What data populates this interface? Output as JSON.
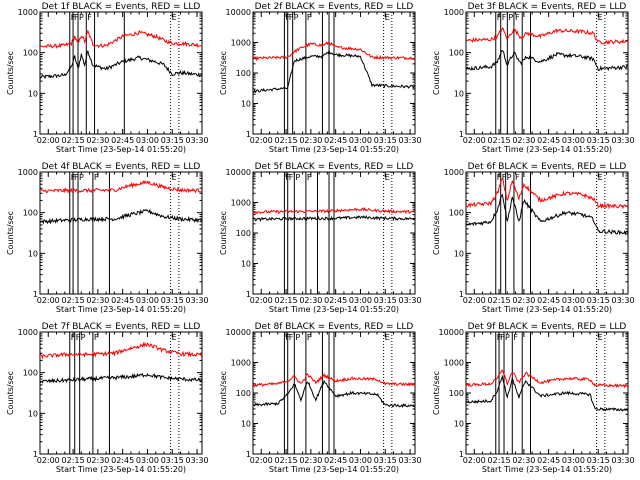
{
  "figure": {
    "start_time_label": "Start Time (23-Sep-14 01:55:20)",
    "y_axis_label": "Counts/sec",
    "x_tick_labels": [
      "02:00",
      "02:15",
      "02:30",
      "02:45",
      "03:00",
      "03:15",
      "03:30"
    ],
    "colors": {
      "events": "#000000",
      "lld": "#ff0000"
    }
  },
  "chart_data": [
    {
      "type": "line",
      "title": "Det 1f BLACK = Events, RED = LLD",
      "xlabel": "Start Time (23-Sep-14 01:55:20)",
      "ylabel": "Counts/sec",
      "xlim": [
        "01:55",
        "03:33"
      ],
      "ylim": [
        1,
        1000
      ],
      "yscale": "log",
      "y_tick_labels": [
        "1",
        "10",
        "100",
        "1000"
      ],
      "x": [
        "01:55",
        "02:10",
        "02:14",
        "02:16",
        "02:18",
        "02:20",
        "02:22",
        "02:24",
        "02:27",
        "02:30",
        "02:35",
        "02:45",
        "02:55",
        "03:05",
        "03:10",
        "03:15",
        "03:20",
        "03:33"
      ],
      "series": [
        {
          "name": "Events",
          "color": "#000000",
          "values": [
            25,
            28,
            45,
            80,
            40,
            90,
            50,
            110,
            50,
            45,
            40,
            60,
            75,
            60,
            50,
            30,
            32,
            28
          ]
        },
        {
          "name": "LLD",
          "color": "#ff0000",
          "values": [
            140,
            150,
            170,
            250,
            160,
            270,
            190,
            330,
            160,
            150,
            150,
            250,
            310,
            250,
            200,
            170,
            170,
            150
          ]
        }
      ],
      "markers": [
        {
          "time": "02:13",
          "label": "F",
          "style": "solid"
        },
        {
          "time": "02:15",
          "label": "F",
          "style": "solid"
        },
        {
          "time": "02:18",
          "label": "P",
          "style": "solid"
        },
        {
          "time": "02:23",
          "label": "F",
          "style": "solid"
        },
        {
          "time": "02:28",
          "label": "",
          "style": "solid"
        },
        {
          "time": "02:46",
          "label": "",
          "style": "solid"
        },
        {
          "time": "03:14",
          "label": "E",
          "style": "dotted"
        },
        {
          "time": "03:19",
          "label": "",
          "style": "dotted"
        }
      ]
    },
    {
      "type": "line",
      "title": "Det 2f BLACK = Events, RED = LLD",
      "xlabel": "Start Time (23-Sep-14 01:55:20)",
      "ylabel": "Counts/sec",
      "xlim": [
        "01:55",
        "03:33"
      ],
      "ylim": [
        1,
        10000
      ],
      "yscale": "log",
      "y_tick_labels": [
        "1",
        "10",
        "100",
        "1000",
        "10000"
      ],
      "x": [
        "01:55",
        "02:10",
        "02:16",
        "02:20",
        "02:25",
        "02:30",
        "02:37",
        "02:41",
        "02:45",
        "03:00",
        "03:07",
        "03:15",
        "03:33"
      ],
      "series": [
        {
          "name": "Events",
          "color": "#000000",
          "values": [
            25,
            30,
            32,
            250,
            300,
            350,
            350,
            500,
            400,
            350,
            40,
            38,
            35
          ]
        },
        {
          "name": "LLD",
          "color": "#ff0000",
          "values": [
            300,
            320,
            330,
            500,
            700,
            900,
            800,
            1000,
            700,
            600,
            330,
            320,
            310
          ]
        }
      ],
      "markers": [
        {
          "time": "02:14",
          "label": "F",
          "style": "solid"
        },
        {
          "time": "02:16",
          "label": "F",
          "style": "solid"
        },
        {
          "time": "02:19",
          "label": "P",
          "style": "solid"
        },
        {
          "time": "02:27",
          "label": "F",
          "style": "solid"
        },
        {
          "time": "02:37",
          "label": "",
          "style": "solid"
        },
        {
          "time": "02:41",
          "label": "",
          "style": "solid"
        },
        {
          "time": "02:44",
          "label": "",
          "style": "solid"
        },
        {
          "time": "03:14",
          "label": "E",
          "style": "dotted"
        },
        {
          "time": "03:19",
          "label": "",
          "style": "dotted"
        }
      ]
    },
    {
      "type": "line",
      "title": "Det 3f BLACK = Events, RED = LLD",
      "xlabel": "Start Time (23-Sep-14 01:55:20)",
      "ylabel": "Counts/sec",
      "xlim": [
        "01:55",
        "03:33"
      ],
      "ylim": [
        1,
        1000
      ],
      "yscale": "log",
      "y_tick_labels": [
        "1",
        "10",
        "100",
        "1000"
      ],
      "x": [
        "01:55",
        "02:10",
        "02:14",
        "02:17",
        "02:20",
        "02:24",
        "02:28",
        "02:32",
        "02:40",
        "02:50",
        "03:05",
        "03:12",
        "03:15",
        "03:33"
      ],
      "series": [
        {
          "name": "Events",
          "color": "#000000",
          "values": [
            40,
            45,
            60,
            120,
            50,
            100,
            55,
            80,
            60,
            90,
            80,
            70,
            40,
            45
          ]
        },
        {
          "name": "LLD",
          "color": "#ff0000",
          "values": [
            200,
            210,
            250,
            400,
            220,
            380,
            240,
            300,
            250,
            350,
            330,
            300,
            180,
            190
          ]
        }
      ],
      "markers": [
        {
          "time": "02:13",
          "label": "F",
          "style": "solid"
        },
        {
          "time": "02:16",
          "label": "F",
          "style": "solid"
        },
        {
          "time": "02:20",
          "label": "P",
          "style": "solid"
        },
        {
          "time": "02:24",
          "label": "F",
          "style": "solid"
        },
        {
          "time": "02:29",
          "label": "",
          "style": "solid"
        },
        {
          "time": "02:34",
          "label": "",
          "style": "solid"
        },
        {
          "time": "03:14",
          "label": "E",
          "style": "dotted"
        },
        {
          "time": "03:19",
          "label": "",
          "style": "dotted"
        }
      ]
    },
    {
      "type": "line",
      "title": "Det 4f BLACK = Events, RED = LLD",
      "xlabel": "Start Time (23-Sep-14 01:55:20)",
      "ylabel": "Counts/sec",
      "xlim": [
        "01:55",
        "03:33"
      ],
      "ylim": [
        1,
        1000
      ],
      "yscale": "log",
      "y_tick_labels": [
        "1",
        "10",
        "100",
        "1000"
      ],
      "x": [
        "01:55",
        "02:10",
        "02:25",
        "02:40",
        "02:50",
        "03:00",
        "03:10",
        "03:20",
        "03:33"
      ],
      "series": [
        {
          "name": "Events",
          "color": "#000000",
          "values": [
            60,
            65,
            70,
            70,
            90,
            110,
            80,
            70,
            65
          ]
        },
        {
          "name": "LLD",
          "color": "#ff0000",
          "values": [
            340,
            350,
            350,
            360,
            470,
            560,
            420,
            360,
            350
          ]
        }
      ],
      "markers": [
        {
          "time": "02:13",
          "label": "F",
          "style": "solid"
        },
        {
          "time": "02:15",
          "label": "F",
          "style": "solid"
        },
        {
          "time": "02:18",
          "label": "P",
          "style": "solid"
        },
        {
          "time": "02:27",
          "label": "F",
          "style": "solid"
        },
        {
          "time": "02:37",
          "label": "",
          "style": "solid"
        },
        {
          "time": "03:14",
          "label": "E",
          "style": "dotted"
        },
        {
          "time": "03:19",
          "label": "",
          "style": "dotted"
        }
      ]
    },
    {
      "type": "line",
      "title": "Det 5f BLACK = Events, RED = LLD",
      "xlabel": "Start Time (23-Sep-14 01:55:20)",
      "ylabel": "Counts/sec",
      "xlim": [
        "01:55",
        "03:33"
      ],
      "ylim": [
        1,
        10000
      ],
      "yscale": "log",
      "y_tick_labels": [
        "1",
        "10",
        "100",
        "1000",
        "10000"
      ],
      "x": [
        "01:55",
        "02:10",
        "02:25",
        "02:40",
        "02:50",
        "03:00",
        "03:10",
        "03:20",
        "03:33"
      ],
      "series": [
        {
          "name": "Events",
          "color": "#000000",
          "values": [
            280,
            290,
            300,
            300,
            310,
            330,
            310,
            300,
            290
          ]
        },
        {
          "name": "LLD",
          "color": "#ff0000",
          "values": [
            480,
            500,
            510,
            520,
            560,
            600,
            540,
            510,
            490
          ]
        }
      ],
      "markers": [
        {
          "time": "02:14",
          "label": "F",
          "style": "solid"
        },
        {
          "time": "02:16",
          "label": "F",
          "style": "solid"
        },
        {
          "time": "02:20",
          "label": "P",
          "style": "solid"
        },
        {
          "time": "02:27",
          "label": "F",
          "style": "solid"
        },
        {
          "time": "02:34",
          "label": "",
          "style": "solid"
        },
        {
          "time": "02:41",
          "label": "",
          "style": "solid"
        },
        {
          "time": "02:44",
          "label": "",
          "style": "solid"
        },
        {
          "time": "03:14",
          "label": "E",
          "style": "dotted"
        },
        {
          "time": "03:19",
          "label": "",
          "style": "dotted"
        }
      ]
    },
    {
      "type": "line",
      "title": "Det 6f BLACK = Events, RED = LLD",
      "xlabel": "Start Time (23-Sep-14 01:55:20)",
      "ylabel": "Counts/sec",
      "xlim": [
        "01:55",
        "03:33"
      ],
      "ylim": [
        1,
        1000
      ],
      "yscale": "log",
      "y_tick_labels": [
        "1",
        "10",
        "100",
        "1000"
      ],
      "x": [
        "01:55",
        "02:10",
        "02:14",
        "02:17",
        "02:20",
        "02:23",
        "02:27",
        "02:30",
        "02:40",
        "02:55",
        "03:05",
        "03:12",
        "03:15",
        "03:33"
      ],
      "series": [
        {
          "name": "Events",
          "color": "#000000",
          "values": [
            50,
            60,
            120,
            300,
            60,
            250,
            60,
            200,
            60,
            100,
            90,
            70,
            35,
            32
          ]
        },
        {
          "name": "LLD",
          "color": "#ff0000",
          "values": [
            150,
            170,
            300,
            700,
            200,
            600,
            220,
            500,
            200,
            300,
            280,
            220,
            150,
            140
          ]
        }
      ],
      "markers": [
        {
          "time": "02:13",
          "label": "F",
          "style": "solid"
        },
        {
          "time": "02:16",
          "label": "F",
          "style": "solid"
        },
        {
          "time": "02:19",
          "label": "P",
          "style": "solid"
        },
        {
          "time": "02:24",
          "label": "F",
          "style": "solid"
        },
        {
          "time": "02:29",
          "label": "",
          "style": "solid"
        },
        {
          "time": "02:34",
          "label": "",
          "style": "solid"
        },
        {
          "time": "03:14",
          "label": "E",
          "style": "dotted"
        },
        {
          "time": "03:19",
          "label": "",
          "style": "dotted"
        }
      ]
    },
    {
      "type": "line",
      "title": "Det 7f BLACK = Events, RED = LLD",
      "xlabel": "Start Time (23-Sep-14 01:55:20)",
      "ylabel": "Counts/sec",
      "xlim": [
        "01:55",
        "03:33"
      ],
      "ylim": [
        1,
        1000
      ],
      "yscale": "log",
      "y_tick_labels": [
        "1",
        "10",
        "100",
        "1000"
      ],
      "x": [
        "01:55",
        "02:10",
        "02:25",
        "02:40",
        "02:50",
        "03:00",
        "03:10",
        "03:20",
        "03:33"
      ],
      "series": [
        {
          "name": "Events",
          "color": "#000000",
          "values": [
            60,
            65,
            70,
            75,
            80,
            90,
            75,
            70,
            65
          ]
        },
        {
          "name": "LLD",
          "color": "#ff0000",
          "values": [
            250,
            280,
            280,
            300,
            400,
            500,
            350,
            290,
            270
          ]
        }
      ],
      "markers": [
        {
          "time": "02:13",
          "label": "F",
          "style": "solid"
        },
        {
          "time": "02:16",
          "label": "F",
          "style": "solid"
        },
        {
          "time": "02:19",
          "label": "P",
          "style": "solid"
        },
        {
          "time": "02:27",
          "label": "F",
          "style": "solid"
        },
        {
          "time": "02:37",
          "label": "",
          "style": "solid"
        },
        {
          "time": "03:14",
          "label": "E",
          "style": "dotted"
        },
        {
          "time": "03:19",
          "label": "",
          "style": "dotted"
        }
      ]
    },
    {
      "type": "line",
      "title": "Det 8f BLACK = Events, RED = LLD",
      "xlabel": "Start Time (23-Sep-14 01:55:20)",
      "ylabel": "Counts/sec",
      "xlim": [
        "01:55",
        "03:33"
      ],
      "ylim": [
        1,
        10000
      ],
      "yscale": "log",
      "y_tick_labels": [
        "1",
        "10",
        "100",
        "1000",
        "10000"
      ],
      "x": [
        "01:55",
        "02:10",
        "02:16",
        "02:20",
        "02:24",
        "02:28",
        "02:33",
        "02:38",
        "02:45",
        "02:55",
        "03:10",
        "03:15",
        "03:33"
      ],
      "series": [
        {
          "name": "Events",
          "color": "#000000",
          "values": [
            40,
            45,
            90,
            200,
            60,
            250,
            60,
            250,
            80,
            100,
            90,
            40,
            38
          ]
        },
        {
          "name": "LLD",
          "color": "#ff0000",
          "values": [
            180,
            200,
            250,
            350,
            200,
            400,
            220,
            380,
            250,
            300,
            280,
            200,
            190
          ]
        }
      ],
      "markers": [
        {
          "time": "02:14",
          "label": "F",
          "style": "solid"
        },
        {
          "time": "02:16",
          "label": "F",
          "style": "solid"
        },
        {
          "time": "02:20",
          "label": "P",
          "style": "solid"
        },
        {
          "time": "02:27",
          "label": "F",
          "style": "solid"
        },
        {
          "time": "02:37",
          "label": "",
          "style": "solid"
        },
        {
          "time": "02:41",
          "label": "",
          "style": "solid"
        },
        {
          "time": "02:44",
          "label": "",
          "style": "solid"
        },
        {
          "time": "03:14",
          "label": "E",
          "style": "dotted"
        },
        {
          "time": "03:19",
          "label": "",
          "style": "dotted"
        }
      ]
    },
    {
      "type": "line",
      "title": "Det 9f BLACK = Events, RED = LLD",
      "xlabel": "Start Time (23-Sep-14 01:55:20)",
      "ylabel": "Counts/sec",
      "xlim": [
        "01:55",
        "03:33"
      ],
      "ylim": [
        1,
        10000
      ],
      "yscale": "log",
      "y_tick_labels": [
        "1",
        "10",
        "100",
        "1000",
        "10000"
      ],
      "x": [
        "01:55",
        "02:10",
        "02:14",
        "02:17",
        "02:20",
        "02:23",
        "02:27",
        "02:31",
        "02:40",
        "02:55",
        "03:10",
        "03:13",
        "03:33"
      ],
      "series": [
        {
          "name": "Events",
          "color": "#000000",
          "values": [
            50,
            55,
            120,
            350,
            70,
            300,
            70,
            250,
            80,
            100,
            90,
            30,
            28
          ]
        },
        {
          "name": "LLD",
          "color": "#ff0000",
          "values": [
            180,
            200,
            300,
            600,
            200,
            500,
            220,
            450,
            220,
            300,
            280,
            180,
            170
          ]
        }
      ],
      "markers": [
        {
          "time": "02:13",
          "label": "F",
          "style": "solid"
        },
        {
          "time": "02:15",
          "label": "F",
          "style": "solid"
        },
        {
          "time": "02:18",
          "label": "P",
          "style": "solid"
        },
        {
          "time": "02:23",
          "label": "F",
          "style": "solid"
        },
        {
          "time": "02:29",
          "label": "",
          "style": "solid"
        },
        {
          "time": "02:34",
          "label": "",
          "style": "solid"
        },
        {
          "time": "03:14",
          "label": "E",
          "style": "dotted"
        },
        {
          "time": "03:19",
          "label": "",
          "style": "dotted"
        }
      ]
    }
  ]
}
